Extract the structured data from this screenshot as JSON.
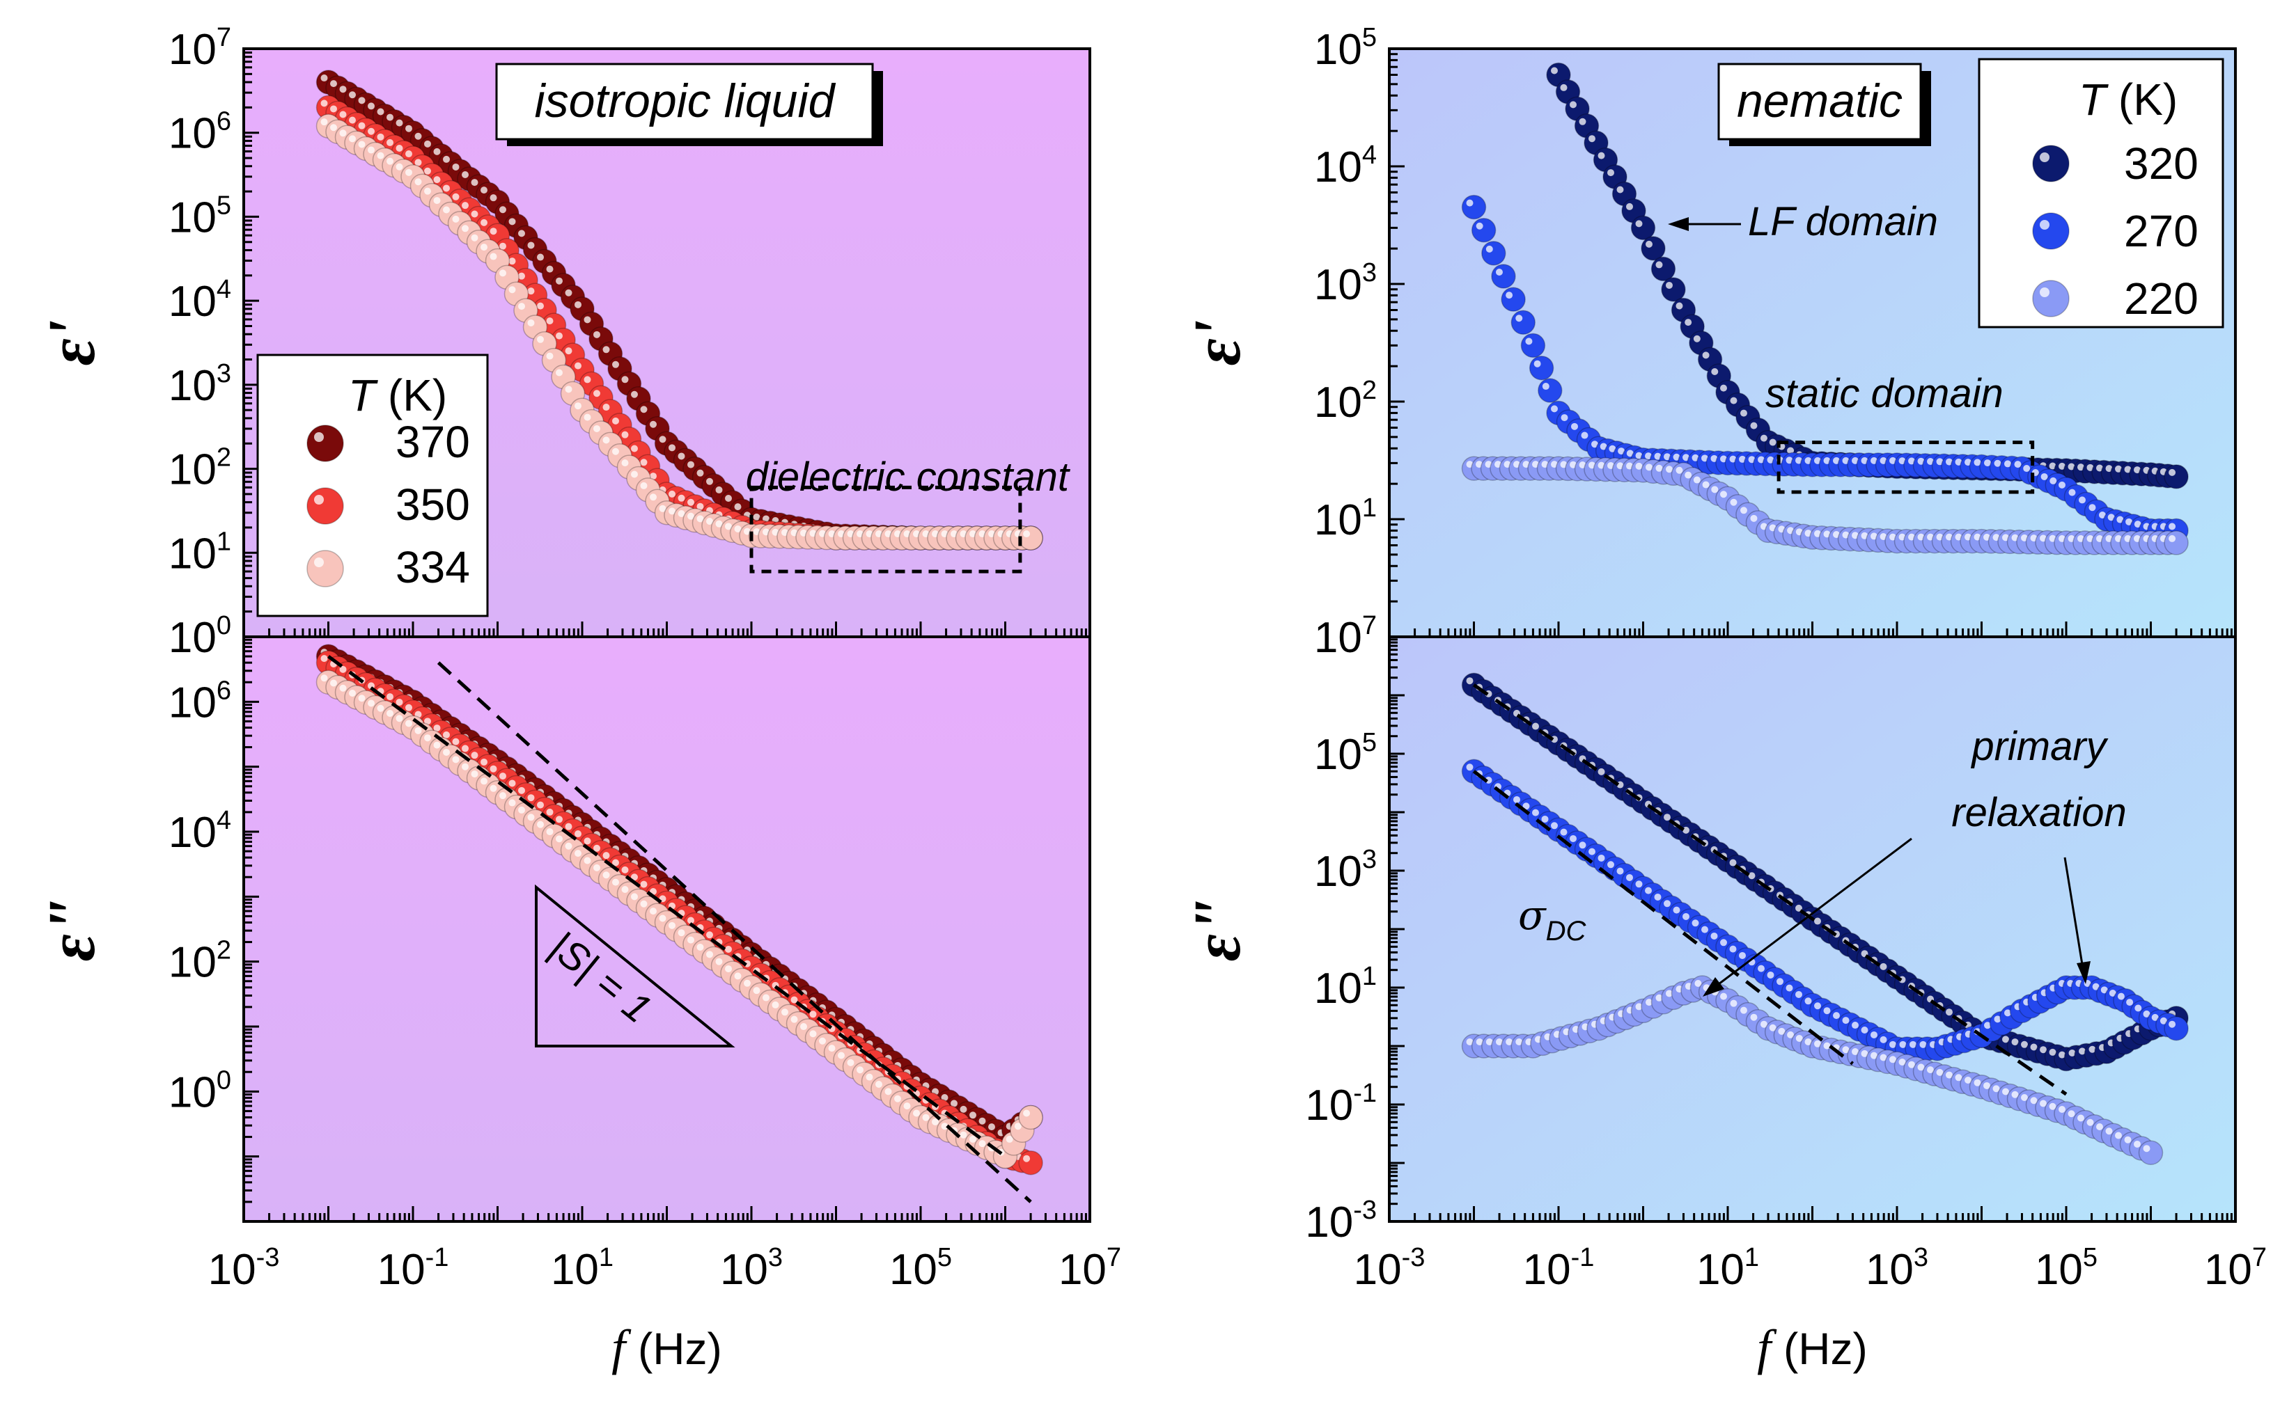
{
  "chart_data": [
    {
      "type": "scatter",
      "title": "",
      "panel_label": "isotropic liquid",
      "xlabel": "f  (Hz)",
      "ylabel": "ε'",
      "xscale": "log",
      "yscale": "log",
      "xlim": [
        0.001,
        10000000
      ],
      "ylim": [
        1,
        10000000
      ],
      "xticks": [
        "10-3",
        "10-1",
        "101",
        "103",
        "105",
        "107"
      ],
      "yticks": [
        "100",
        "101",
        "102",
        "103",
        "104",
        "105",
        "106",
        "107"
      ],
      "legend": {
        "title": "T  (K)",
        "placement": "left",
        "entries": [
          "370",
          "350",
          "334"
        ]
      },
      "colors": {
        "370": "#7a0a0a",
        "350": "#f03a35",
        "334": "#f8c4bc"
      },
      "annotations": [
        "dielectric constant"
      ],
      "series": [
        {
          "name": "370",
          "x": [
            0.01,
            0.1,
            1,
            10,
            100,
            1000,
            10000,
            100000,
            1000000,
            2000000
          ],
          "y": [
            4000000,
            1000000,
            150000,
            8000,
            200,
            25,
            16,
            15,
            15,
            15
          ]
        },
        {
          "name": "350",
          "x": [
            0.01,
            0.1,
            1,
            10,
            100,
            1000,
            10000,
            100000,
            1000000,
            2000000
          ],
          "y": [
            2000000,
            500000,
            60000,
            1500,
            50,
            18,
            15,
            15,
            15,
            15
          ]
        },
        {
          "name": "334",
          "x": [
            0.01,
            0.1,
            1,
            10,
            100,
            1000,
            10000,
            100000,
            1000000,
            2000000
          ],
          "y": [
            1200000,
            300000,
            30000,
            500,
            30,
            16,
            15,
            15,
            15,
            15
          ]
        }
      ]
    },
    {
      "type": "scatter",
      "title": "",
      "xlabel": "f  (Hz)",
      "ylabel": "ε\"",
      "xscale": "log",
      "yscale": "log",
      "xlim": [
        0.001,
        10000000
      ],
      "ylim": [
        0.01,
        10000000
      ],
      "xticks": [
        "10-3",
        "10-1",
        "101",
        "103",
        "105",
        "107"
      ],
      "yticks": [
        "100",
        "102",
        "104",
        "106"
      ],
      "annotations": [
        "|S| = 1"
      ],
      "series": [
        {
          "name": "370",
          "x": [
            0.01,
            0.1,
            1,
            10,
            100,
            1000,
            10000,
            100000,
            1000000,
            2000000
          ],
          "y": [
            5000000,
            1000000,
            120000,
            13000,
            1300,
            130,
            13,
            1.3,
            0.2,
            0.4
          ]
        },
        {
          "name": "350",
          "x": [
            0.01,
            0.1,
            1,
            10,
            100,
            1000,
            10000,
            100000,
            1000000,
            2000000
          ],
          "y": [
            4000000,
            700000,
            80000,
            8000,
            800,
            80,
            8,
            0.8,
            0.1,
            0.08
          ]
        },
        {
          "name": "334",
          "x": [
            0.01,
            0.1,
            1,
            10,
            100,
            1000,
            10000,
            100000,
            1000000,
            2000000
          ],
          "y": [
            2000000,
            400000,
            40000,
            4000,
            400,
            40,
            4,
            0.4,
            0.1,
            0.4
          ]
        }
      ]
    },
    {
      "type": "scatter",
      "title": "",
      "panel_label": "nematic",
      "xlabel": "f  (Hz)",
      "ylabel": "ε'",
      "xscale": "log",
      "yscale": "log",
      "xlim": [
        0.001,
        10000000
      ],
      "ylim": [
        1,
        100000
      ],
      "xticks": [
        "10-3",
        "10-1",
        "101",
        "103",
        "105",
        "107"
      ],
      "yticks": [
        "101",
        "102",
        "103",
        "104",
        "105"
      ],
      "legend": {
        "title": "T  (K)",
        "placement": "top-right",
        "entries": [
          "320",
          "270",
          "220"
        ]
      },
      "colors": {
        "320": "#0c1a6e",
        "270": "#2448ee",
        "220": "#8a9af5"
      },
      "annotations": [
        "LF domain",
        "static domain"
      ],
      "series": [
        {
          "name": "320",
          "x": [
            0.1,
            1,
            3,
            10,
            30,
            100,
            1000,
            10000,
            100000,
            1000000,
            2000000
          ],
          "y": [
            60000,
            3000,
            600,
            120,
            45,
            30,
            28,
            27,
            26,
            24,
            23
          ]
        },
        {
          "name": "270",
          "x": [
            0.01,
            0.05,
            0.1,
            0.3,
            1,
            10,
            100,
            1000,
            10000,
            30000,
            100000,
            300000,
            1000000,
            2000000
          ],
          "y": [
            4500,
            300,
            80,
            40,
            32,
            30,
            29,
            29,
            28,
            27,
            18,
            10,
            8,
            8
          ]
        },
        {
          "name": "220",
          "x": [
            0.01,
            0.1,
            1,
            3,
            10,
            30,
            100,
            1000,
            10000,
            100000,
            1000000,
            2000000
          ],
          "y": [
            27,
            27,
            26,
            24,
            15,
            8,
            7,
            6.5,
            6.5,
            6.3,
            6.3,
            6.3
          ]
        }
      ]
    },
    {
      "type": "scatter",
      "title": "",
      "xlabel": "f  (Hz)",
      "ylabel": "ε\"",
      "xscale": "log",
      "yscale": "log",
      "xlim": [
        0.001,
        10000000
      ],
      "ylim": [
        0.001,
        10000000
      ],
      "xticks": [
        "10-3",
        "10-1",
        "101",
        "103",
        "105",
        "107"
      ],
      "yticks": [
        "10-3",
        "10-1",
        "101",
        "103",
        "105",
        "107"
      ],
      "annotations": [
        "σDC",
        "primary relaxation"
      ],
      "series": [
        {
          "name": "320",
          "x": [
            0.01,
            0.1,
            1,
            10,
            100,
            1000,
            10000,
            100000,
            300000,
            1000000,
            2000000
          ],
          "y": [
            1500000,
            150000,
            15000,
            1500,
            150,
            15,
            1.5,
            0.6,
            0.8,
            2,
            3
          ]
        },
        {
          "name": "270",
          "x": [
            0.01,
            0.1,
            1,
            10,
            100,
            1000,
            3000,
            10000,
            30000,
            100000,
            200000,
            500000,
            1000000,
            2000000
          ],
          "y": [
            50000,
            5000,
            500,
            50,
            5,
            0.9,
            0.9,
            1.5,
            4,
            10,
            10,
            6,
            3,
            2
          ]
        },
        {
          "name": "220",
          "x": [
            0.01,
            0.05,
            0.3,
            1,
            3,
            5,
            10,
            30,
            100,
            1000,
            10000,
            100000,
            1000000
          ],
          "y": [
            1,
            1,
            2,
            4,
            8,
            10,
            6,
            2,
            1,
            0.5,
            0.2,
            0.07,
            0.015
          ]
        }
      ]
    }
  ]
}
